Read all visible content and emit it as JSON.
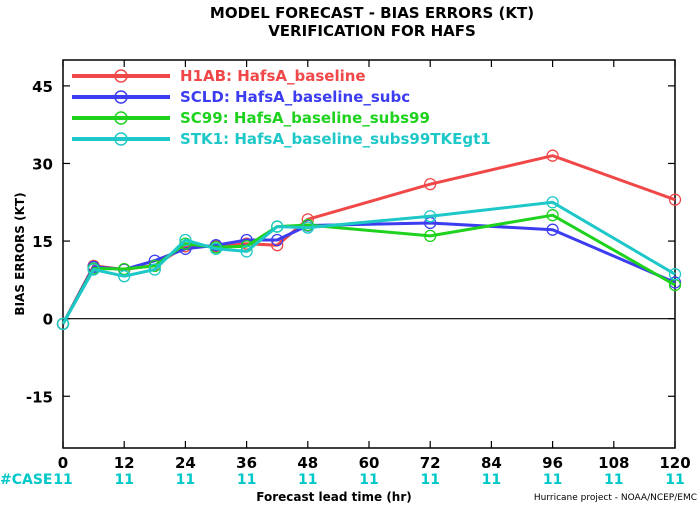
{
  "chart_data": {
    "type": "line",
    "title_line1": "MODEL FORECAST - BIAS ERRORS (KT)",
    "title_line2": "VERIFICATION FOR HAFS",
    "xlabel": "Forecast lead time (hr)",
    "ylabel": "BIAS ERRORS (KT)",
    "credit": "Hurricane project - NOAA/NCEP/EMC",
    "case_label": "#CASE",
    "xlim": [
      0,
      120
    ],
    "ylim": [
      -25,
      50
    ],
    "x_ticks": [
      0,
      12,
      24,
      36,
      48,
      60,
      72,
      84,
      96,
      108,
      120
    ],
    "y_ticks": [
      -15,
      0,
      15,
      30,
      45
    ],
    "case_ticks": [
      0,
      12,
      24,
      36,
      48,
      60,
      72,
      84,
      96,
      108,
      120
    ],
    "case_counts": [
      "11",
      "11",
      "11",
      "11",
      "11",
      "11",
      "11",
      "11",
      "11",
      "11",
      "11"
    ],
    "colors": {
      "case_text": "#00c8c8",
      "zero_line": "#000000"
    },
    "series": [
      {
        "name": "H1AB: HafsA_baseline",
        "color": "#f04848",
        "x": [
          0,
          6,
          12,
          18,
          24,
          30,
          36,
          42,
          48,
          72,
          96,
          120
        ],
        "y": [
          -1,
          10.2,
          9.5,
          10.3,
          14,
          14,
          14.5,
          14.2,
          19.2,
          26,
          31.5,
          23
        ]
      },
      {
        "name": "SCLD: HafsA_baseline_subc",
        "color": "#3c3cf0",
        "x": [
          0,
          6,
          12,
          18,
          24,
          30,
          36,
          42,
          48,
          72,
          96,
          120
        ],
        "y": [
          -1,
          10,
          9.5,
          11.2,
          13.5,
          14.2,
          15.2,
          15.2,
          18,
          18.5,
          17.2,
          7
        ]
      },
      {
        "name": "SC99: HafsA_baseline_subs99",
        "color": "#1ed21e",
        "x": [
          0,
          6,
          12,
          18,
          24,
          30,
          36,
          42,
          48,
          72,
          96,
          120
        ],
        "y": [
          -1,
          9.7,
          9.6,
          10.2,
          14.5,
          13.8,
          14,
          17.8,
          18.1,
          16,
          20,
          6.5
        ]
      },
      {
        "name": "STK1: HafsA_baseline_subs99TKEgt1",
        "color": "#1ec8c8",
        "x": [
          0,
          6,
          12,
          18,
          24,
          30,
          36,
          42,
          48,
          72,
          96,
          120
        ],
        "y": [
          -1,
          9.5,
          8.2,
          9.5,
          15.2,
          13.5,
          13,
          17.8,
          17.6,
          19.8,
          22.5,
          8.6
        ]
      }
    ]
  }
}
